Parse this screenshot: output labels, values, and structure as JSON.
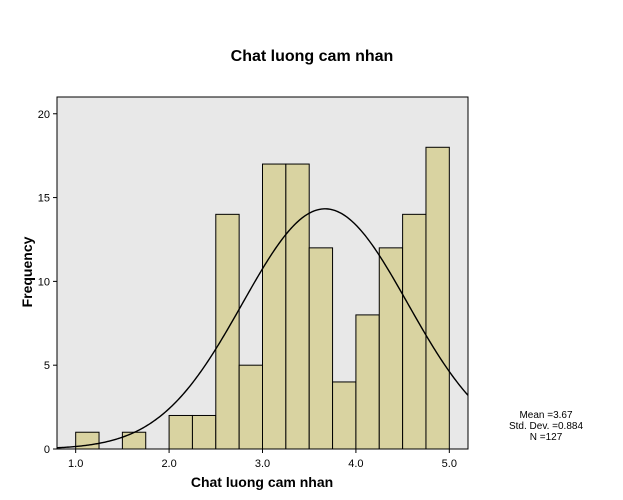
{
  "chart_data": {
    "type": "bar",
    "title": "Chat luong cam nhan",
    "xlabel": "Chat luong cam nhan",
    "ylabel": "Frequency",
    "bin_edges": [
      1.0,
      1.25,
      1.5,
      1.75,
      2.0,
      2.25,
      2.5,
      2.75,
      3.0,
      3.25,
      3.5,
      3.75,
      4.0,
      4.25,
      4.5,
      4.75,
      5.0
    ],
    "bins": [
      {
        "x0": 1.0,
        "x1": 1.25,
        "value": 1
      },
      {
        "x0": 1.5,
        "x1": 1.75,
        "value": 1
      },
      {
        "x0": 2.0,
        "x1": 2.25,
        "value": 2
      },
      {
        "x0": 2.25,
        "x1": 2.5,
        "value": 2
      },
      {
        "x0": 2.5,
        "x1": 2.75,
        "value": 14
      },
      {
        "x0": 2.75,
        "x1": 3.0,
        "value": 5
      },
      {
        "x0": 3.0,
        "x1": 3.25,
        "value": 17
      },
      {
        "x0": 3.25,
        "x1": 3.5,
        "value": 17
      },
      {
        "x0": 3.5,
        "x1": 3.75,
        "value": 12
      },
      {
        "x0": 3.75,
        "x1": 4.0,
        "value": 4
      },
      {
        "x0": 4.0,
        "x1": 4.25,
        "value": 8
      },
      {
        "x0": 4.25,
        "x1": 4.5,
        "value": 12
      },
      {
        "x0": 4.5,
        "x1": 4.75,
        "value": 14
      },
      {
        "x0": 4.75,
        "x1": 5.0,
        "value": 18
      }
    ],
    "xlim": [
      0.8,
      5.2
    ],
    "ylim": [
      0,
      21
    ],
    "xticks": [
      1.0,
      2.0,
      3.0,
      4.0,
      5.0
    ],
    "xtick_labels": [
      "1.0",
      "2.0",
      "3.0",
      "4.0",
      "5.0"
    ],
    "yticks": [
      0,
      5,
      10,
      15,
      20
    ],
    "ytick_labels": [
      "0",
      "5",
      "10",
      "15",
      "20"
    ],
    "normal_curve": {
      "mean": 3.67,
      "std": 0.884,
      "n": 127,
      "bin_width": 0.25
    },
    "stats": {
      "mean": "Mean =3.67",
      "std": "Std. Dev. =0.884",
      "n": "N =127"
    },
    "colors": {
      "plot_background": "#e8e8e8",
      "bar_fill": "#d9d3a1",
      "bar_stroke": "#000000",
      "curve": "#000000"
    }
  }
}
